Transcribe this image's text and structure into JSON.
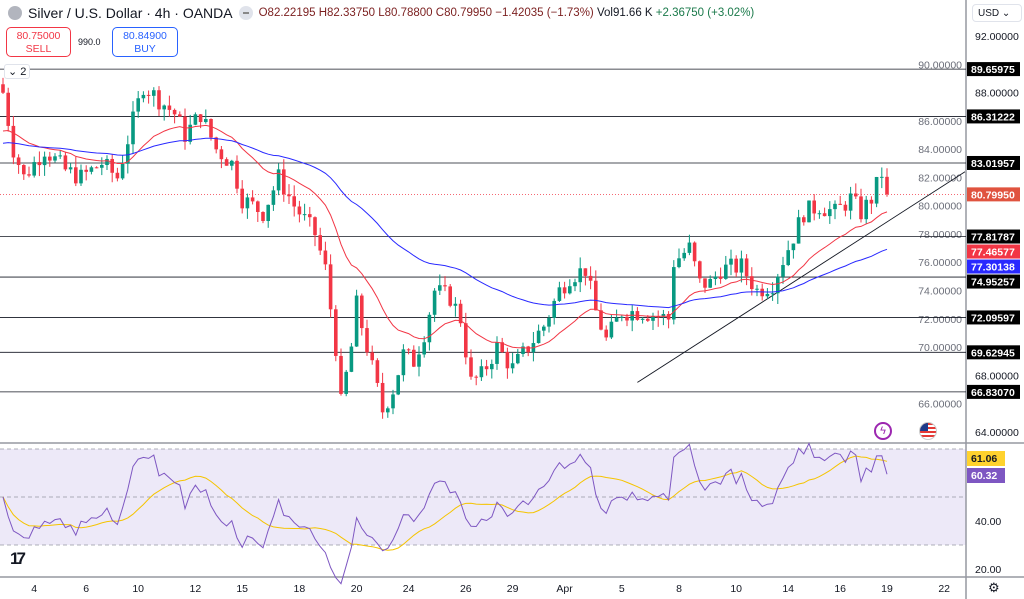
{
  "header": {
    "title": "Silver / U.S. Dollar · 4h · OANDA",
    "open": "O82.22195",
    "high": "H82.33750",
    "low": "L80.78800",
    "close": "C80.79950",
    "change": "−1.42035 (−1.73%)",
    "volume": "Vol91.66 K",
    "change2": "+2.36750 (+3.02%)"
  },
  "trade": {
    "sell_price": "80.75000",
    "sell_label": "SELL",
    "spread": "990.0",
    "buy_price": "80.84900",
    "buy_label": "BUY"
  },
  "collapse_label": "⌄ 2",
  "currency": "USD ⌄",
  "settings_icon": "⚙",
  "colors": {
    "up": "#089981",
    "down": "#f23645",
    "ma_fast": "#f23645",
    "ma_slow": "#2929ff",
    "rsi": "#7e57c2",
    "rsi_ma": "#f5c400",
    "rsi_band": "#ede9f8"
  },
  "chart_data": [
    {
      "type": "candlestick",
      "pane": "price",
      "price_ticks": [
        "92.00000",
        "90.00000",
        "88.00000",
        "86.00000",
        "84.00000",
        "82.00000",
        "80.00000",
        "78.00000",
        "76.00000",
        "74.00000",
        "72.00000",
        "70.00000",
        "68.00000",
        "66.00000",
        "64.00000"
      ],
      "ylim": [
        63,
        93
      ],
      "x_ticks": [
        "4",
        "6",
        "10",
        "12",
        "15",
        "18",
        "20",
        "24",
        "26",
        "29",
        "Apr",
        "5",
        "8",
        "10",
        "14",
        "16",
        "19",
        "22"
      ],
      "x_tick_bars": [
        6,
        16,
        26,
        37,
        46,
        57,
        68,
        78,
        89,
        98,
        108,
        119,
        130,
        141,
        151,
        161,
        170,
        181
      ],
      "close_path": [
        [
          0,
          88
        ],
        [
          2,
          84
        ],
        [
          4,
          82
        ],
        [
          8,
          84
        ],
        [
          12,
          82.5
        ],
        [
          15,
          82
        ],
        [
          19,
          83
        ],
        [
          22,
          82
        ],
        [
          25,
          86
        ],
        [
          27,
          88.5
        ],
        [
          30,
          87.5
        ],
        [
          33,
          86.5
        ],
        [
          35,
          85
        ],
        [
          38,
          86.5
        ],
        [
          41,
          84
        ],
        [
          44,
          83
        ],
        [
          46,
          80.5
        ],
        [
          50,
          79.5
        ],
        [
          53,
          82
        ],
        [
          56,
          80
        ],
        [
          60,
          78
        ],
        [
          62,
          75.5
        ],
        [
          64,
          70
        ],
        [
          65,
          66
        ],
        [
          67,
          70
        ],
        [
          68,
          73
        ],
        [
          70,
          70
        ],
        [
          73,
          65.5
        ],
        [
          75,
          67
        ],
        [
          77,
          69.5
        ],
        [
          79,
          69
        ],
        [
          81,
          71
        ],
        [
          83,
          74
        ],
        [
          86,
          73.5
        ],
        [
          88,
          72
        ],
        [
          90,
          67.5
        ],
        [
          92,
          68
        ],
        [
          95,
          70
        ],
        [
          98,
          68.5
        ],
        [
          101,
          70
        ],
        [
          104,
          71.5
        ],
        [
          107,
          74
        ],
        [
          109,
          75
        ],
        [
          112,
          75.5
        ],
        [
          114,
          72.5
        ],
        [
          116,
          70.5
        ],
        [
          119,
          72.5
        ],
        [
          123,
          72.5
        ],
        [
          128,
          72
        ],
        [
          129,
          76
        ],
        [
          132,
          77
        ],
        [
          134,
          74.5
        ],
        [
          136,
          74.5
        ],
        [
          138,
          75.5
        ],
        [
          142,
          75.7
        ],
        [
          145,
          74
        ],
        [
          148,
          74.5
        ],
        [
          151,
          77
        ],
        [
          154,
          79.5
        ],
        [
          157,
          80
        ],
        [
          160,
          79.5
        ],
        [
          163,
          80.5
        ],
        [
          165,
          79.5
        ],
        [
          167,
          80.5
        ],
        [
          169,
          82.3
        ],
        [
          170,
          80.8
        ]
      ],
      "horizontal_levels": [
        89.65975,
        86.31222,
        83.01957,
        77.81787,
        74.95257,
        72.09597,
        69.62945,
        66.8307
      ],
      "level_labels": [
        "89.65975",
        "86.31222",
        "83.01957",
        "77.81787",
        "74.95257",
        "72.09597",
        "69.62945",
        "66.83070"
      ],
      "trendline": [
        [
          122,
          67.5
        ],
        [
          185,
          82.4
        ]
      ],
      "last_price": "80.79950",
      "ma_fast_value": "77.46577",
      "ma_slow_value": "77.30138"
    },
    {
      "type": "line",
      "pane": "rsi",
      "ylim": [
        18,
        73
      ],
      "bands": [
        70,
        50,
        30
      ],
      "y_ticks": [
        "40.00",
        "20.00"
      ],
      "rsi_value": "61.06",
      "rsi_ma_value": "60.32"
    }
  ]
}
